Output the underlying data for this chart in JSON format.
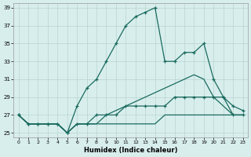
{
  "xlabel": "Humidex (Indice chaleur)",
  "ylabel": "",
  "xlim": [
    -0.5,
    23.5
  ],
  "ylim": [
    24.5,
    39.5
  ],
  "xticks": [
    0,
    1,
    2,
    3,
    4,
    5,
    6,
    7,
    8,
    9,
    10,
    11,
    12,
    13,
    14,
    15,
    16,
    17,
    18,
    19,
    20,
    21,
    22,
    23
  ],
  "yticks": [
    25,
    27,
    29,
    31,
    33,
    35,
    37,
    39
  ],
  "background_color": "#d8eeed",
  "line_color": "#1a6b5e",
  "grid_color": "#b8d4d0",
  "series1_x": [
    0,
    1,
    2,
    3,
    4,
    5,
    6,
    7,
    8,
    9,
    10,
    11,
    12,
    13,
    14,
    15,
    16,
    17,
    18,
    19,
    20,
    21,
    22,
    23
  ],
  "series1_y": [
    27,
    26,
    26,
    26,
    26,
    25,
    28,
    30,
    31,
    33,
    35,
    37,
    38,
    38.5,
    39,
    33,
    33,
    34,
    34,
    35,
    31,
    29,
    28,
    27.5
  ],
  "series2_x": [
    0,
    1,
    2,
    3,
    4,
    5,
    6,
    7,
    8,
    9,
    10,
    11,
    12,
    13,
    14,
    15,
    16,
    17,
    18,
    19,
    20,
    21,
    22,
    23
  ],
  "series2_y": [
    27,
    26,
    26,
    26,
    26,
    25,
    26,
    26,
    27,
    27,
    27,
    28,
    28,
    28,
    28,
    28,
    29,
    29,
    29,
    29,
    29,
    29,
    27,
    27
  ],
  "series3_x": [
    0,
    1,
    2,
    3,
    4,
    5,
    6,
    7,
    8,
    9,
    10,
    11,
    12,
    13,
    14,
    15,
    16,
    17,
    18,
    19,
    20,
    21,
    22,
    23
  ],
  "series3_y": [
    27,
    26,
    26,
    26,
    26,
    25,
    26,
    26,
    26,
    27,
    27.5,
    28,
    28.5,
    29,
    29.5,
    30,
    30.5,
    31,
    31.5,
    31,
    29,
    28,
    27,
    27
  ],
  "series4_x": [
    0,
    1,
    2,
    3,
    4,
    5,
    6,
    7,
    8,
    9,
    10,
    11,
    12,
    13,
    14,
    15,
    16,
    17,
    18,
    19,
    20,
    21,
    22,
    23
  ],
  "series4_y": [
    27,
    26,
    26,
    26,
    26,
    25,
    26,
    26,
    26,
    26,
    26,
    26,
    26,
    26,
    26,
    27,
    27,
    27,
    27,
    27,
    27,
    27,
    27,
    27
  ]
}
